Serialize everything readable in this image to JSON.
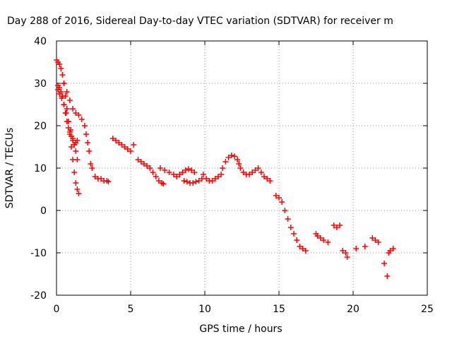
{
  "chart_data": {
    "type": "scatter",
    "title": "Day 288 of 2016, Sidereal Day-to-day VTEC variation (SDTVAR) for receiver m",
    "xlabel": "GPS time / hours",
    "ylabel": "SDTVAR / TECUs",
    "xlim": [
      0,
      25
    ],
    "ylim": [
      -20,
      40
    ],
    "xticks": [
      0,
      5,
      10,
      15,
      20,
      25
    ],
    "yticks": [
      -20,
      -10,
      0,
      10,
      20,
      30,
      40
    ],
    "xtick_labels": [
      "0",
      "5",
      "10",
      "15",
      "20",
      "25"
    ],
    "ytick_labels": [
      "-20",
      "-10",
      "0",
      "10",
      "20",
      "30",
      "40"
    ],
    "grid": true,
    "marker": "+",
    "series_color": "#ff0000",
    "series": [
      {
        "name": "SDTVAR",
        "x": [
          0.0,
          0.1,
          0.2,
          0.3,
          0.4,
          0.5,
          0.6,
          0.7,
          0.8,
          0.9,
          1.0,
          1.1,
          1.2,
          1.3,
          1.4,
          1.5,
          0.1,
          0.2,
          0.3,
          0.4,
          0.5,
          0.6,
          0.7,
          0.8,
          0.9,
          1.0,
          1.1,
          1.2,
          1.3,
          1.4,
          0.1,
          0.2,
          0.35,
          0.5,
          0.65,
          0.8,
          0.95,
          1.1,
          1.2,
          1.3,
          1.4,
          0.5,
          0.7,
          0.9,
          1.1,
          1.3,
          1.5,
          1.7,
          1.9,
          2.0,
          2.1,
          2.2,
          2.3,
          2.4,
          2.6,
          2.8,
          3.0,
          3.2,
          3.4,
          3.5,
          3.8,
          4.0,
          4.2,
          4.4,
          4.6,
          4.8,
          5.0,
          5.2,
          5.5,
          5.7,
          5.9,
          6.1,
          6.3,
          6.5,
          6.7,
          6.9,
          7.1,
          7.2,
          7.0,
          7.3,
          7.6,
          7.9,
          8.1,
          8.3,
          8.5,
          8.7,
          8.9,
          9.1,
          9.3,
          8.6,
          8.8,
          9.0,
          9.2,
          9.4,
          9.6,
          9.8,
          9.9,
          10.1,
          10.3,
          10.5,
          10.7,
          10.9,
          11.1,
          11.2,
          11.4,
          11.6,
          11.8,
          12.0,
          12.2,
          12.3,
          12.4,
          12.6,
          12.8,
          13.0,
          13.2,
          13.4,
          13.6,
          13.8,
          14.0,
          14.2,
          14.4,
          14.8,
          15.0,
          15.2,
          15.4,
          15.6,
          15.8,
          16.0,
          16.2,
          16.4,
          16.6,
          16.8,
          17.5,
          17.6,
          17.8,
          18.0,
          18.3,
          18.7,
          18.9,
          19.1,
          19.3,
          19.5,
          19.6,
          20.2,
          20.8,
          21.3,
          21.5,
          21.7,
          22.1,
          22.3,
          22.4,
          22.5,
          22.7
        ],
        "y": [
          35.5,
          35.0,
          34.5,
          33.5,
          32.0,
          30.0,
          27.0,
          24.0,
          21.0,
          18.0,
          15.0,
          12.0,
          9.0,
          6.5,
          5.0,
          4.0,
          29.5,
          29.0,
          28.0,
          27.0,
          25.0,
          23.0,
          21.0,
          19.5,
          18.5,
          17.5,
          16.5,
          15.5,
          16.0,
          16.5,
          28.5,
          27.5,
          26.5,
          25.0,
          23.0,
          21.0,
          19.0,
          17.0,
          15.5,
          14.0,
          12.0,
          30.0,
          28.0,
          26.0,
          24.0,
          23.0,
          22.5,
          21.5,
          20.0,
          18.0,
          16.0,
          14.0,
          11.0,
          10.0,
          8.0,
          7.5,
          7.5,
          7.0,
          7.0,
          6.8,
          17.0,
          16.5,
          16.0,
          15.5,
          15.0,
          14.5,
          14.0,
          15.5,
          12.0,
          11.5,
          11.0,
          10.5,
          10.0,
          9.0,
          8.0,
          7.0,
          6.5,
          6.3,
          10.0,
          9.5,
          9.0,
          8.5,
          8.0,
          8.5,
          9.0,
          9.5,
          9.8,
          9.5,
          9.0,
          7.0,
          6.8,
          6.5,
          6.5,
          6.8,
          7.0,
          7.5,
          8.5,
          7.5,
          7.0,
          7.0,
          7.5,
          8.0,
          8.5,
          10.0,
          11.5,
          12.5,
          13.0,
          12.8,
          12.0,
          11.0,
          10.0,
          9.0,
          8.5,
          8.5,
          9.0,
          9.5,
          10.0,
          9.0,
          8.0,
          7.5,
          7.0,
          3.5,
          3.0,
          2.0,
          0.0,
          -2.0,
          -4.0,
          -5.5,
          -7.0,
          -8.5,
          -9.0,
          -9.5,
          -5.5,
          -6.0,
          -6.5,
          -7.0,
          -7.5,
          -3.5,
          -4.0,
          -3.5,
          -9.5,
          -10.0,
          -11.0,
          -9.0,
          -8.5,
          -6.5,
          -7.0,
          -7.5,
          -12.5,
          -15.5,
          -10.0,
          -9.5,
          -9.0
        ],
        "note": "approximate decimated trace; values estimated from the scatter"
      }
    ]
  }
}
